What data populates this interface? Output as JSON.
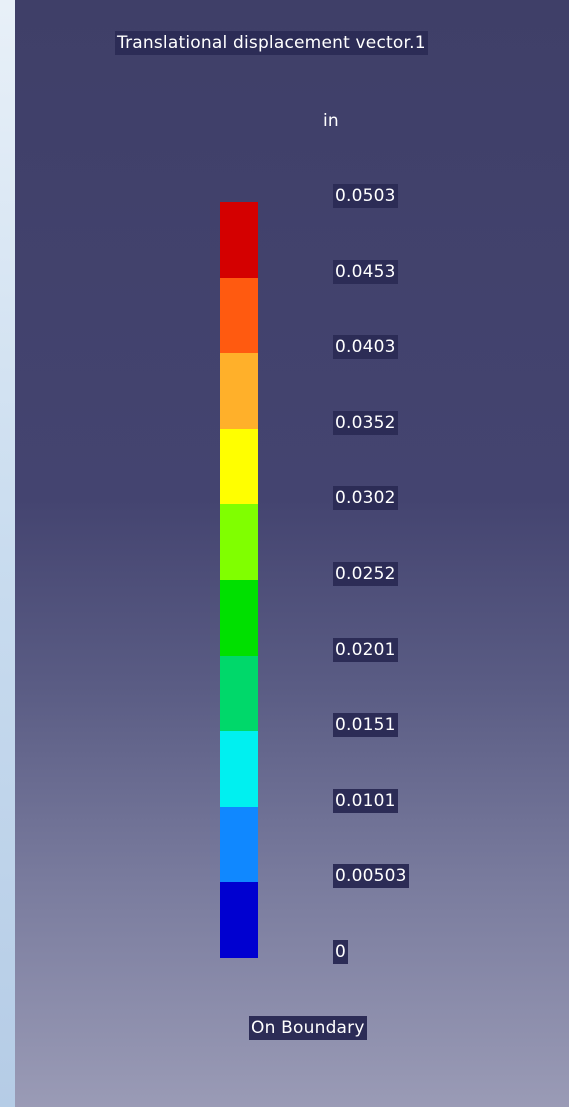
{
  "legend": {
    "title": "Translational displacement vector.1",
    "units": "in",
    "values": [
      "0.0503",
      "0.0453",
      "0.0403",
      "0.0352",
      "0.0302",
      "0.0252",
      "0.0201",
      "0.0151",
      "0.0101",
      "0.00503",
      "0"
    ],
    "colors": [
      "#d40000",
      "#ff5a10",
      "#ffb02a",
      "#ffff00",
      "#80ff00",
      "#00e000",
      "#00d86a",
      "#00f0f0",
      "#1088ff",
      "#0000d0"
    ],
    "footer": "On Boundary"
  }
}
